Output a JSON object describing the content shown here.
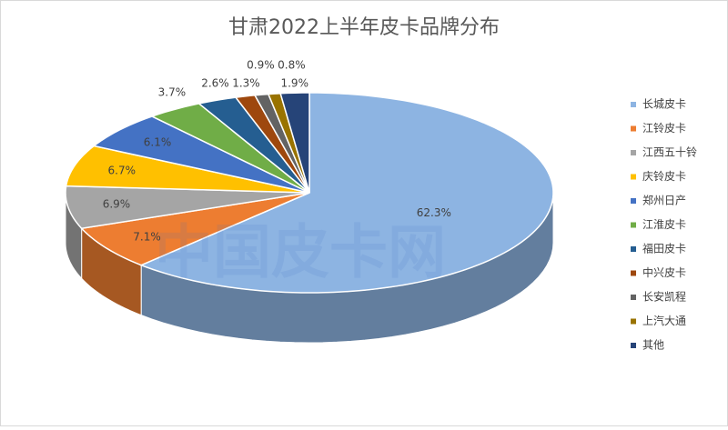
{
  "chart_data": {
    "type": "pie3d",
    "title": "甘肃2022上半年皮卡品牌分布",
    "watermark": "中国皮卡网",
    "categories": [
      "长城皮卡",
      "江铃皮卡",
      "江西五十铃",
      "庆铃皮卡",
      "郑州日产",
      "江淮皮卡",
      "福田皮卡",
      "中兴皮卡",
      "长安凯程",
      "上汽大通",
      "其他"
    ],
    "values": [
      62.3,
      7.1,
      6.9,
      6.7,
      6.1,
      3.7,
      2.6,
      1.3,
      0.9,
      0.8,
      1.9
    ],
    "value_labels": [
      "62.3%",
      "7.1%",
      "6.9%",
      "6.7%",
      "6.1%",
      "3.7%",
      "2.6%",
      "1.3%",
      "0.9%",
      "0.8%",
      "1.9%"
    ],
    "colors": [
      "#8db4e2",
      "#ed7d31",
      "#a5a5a5",
      "#ffc000",
      "#4472c4",
      "#70ad47",
      "#255e91",
      "#9e480e",
      "#636363",
      "#997300",
      "#264478"
    ],
    "legend": "right"
  }
}
